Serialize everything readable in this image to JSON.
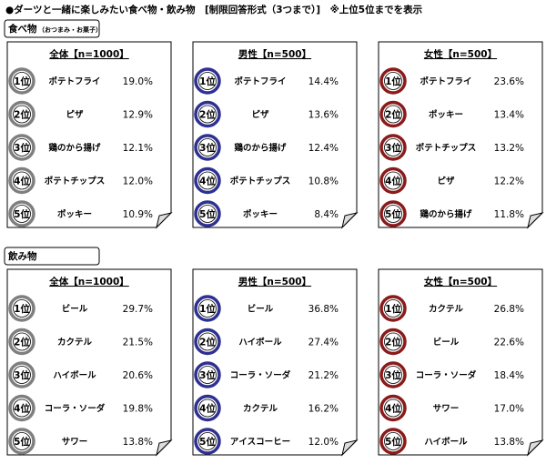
{
  "title": "●ダーツと一緒に楽しみたい食べ物・飲み物　[制限回答形式（3つまで）]　※上位5位までを表示",
  "sections": [
    {
      "label": "食べ物",
      "sublabel": "（おつまみ・お菓子）",
      "panels": [
        {
          "header": "全体【n=1000】",
          "items": [
            {
              "rank": "1位",
              "name": "ポテトフライ",
              "value": "19.0%"
            },
            {
              "rank": "2位",
              "name": "ピザ",
              "value": "12.9%"
            },
            {
              "rank": "3位",
              "name": "鶏のから揚げ",
              "value": "12.1%"
            },
            {
              "rank": "4位",
              "name": "ポテトチップス",
              "value": "12.0%"
            },
            {
              "rank": "5位",
              "name": "ポッキー",
              "value": "10.9%"
            }
          ]
        },
        {
          "header": "男性【n=500】",
          "items": [
            {
              "rank": "1位",
              "name": "ポテトフライ",
              "value": "14.4%"
            },
            {
              "rank": "2位",
              "name": "ピザ",
              "value": "13.6%"
            },
            {
              "rank": "3位",
              "name": "鶏のから揚げ",
              "value": "12.4%"
            },
            {
              "rank": "4位",
              "name": "ポテトチップス",
              "value": "10.8%"
            },
            {
              "rank": "5位",
              "name": "ポッキー",
              "value": "8.4%"
            }
          ]
        },
        {
          "header": "女性【n=500】",
          "items": [
            {
              "rank": "1位",
              "name": "ポテトフライ",
              "value": "23.6%"
            },
            {
              "rank": "2位",
              "name": "ポッキー",
              "value": "13.4%"
            },
            {
              "rank": "3位",
              "name": "ポテトチップス",
              "value": "13.2%"
            },
            {
              "rank": "4位",
              "name": "ピザ",
              "value": "12.2%"
            },
            {
              "rank": "5位",
              "name": "鶏のから揚げ",
              "value": "11.8%"
            }
          ]
        }
      ]
    },
    {
      "label": "飲み物",
      "panels": [
        {
          "header": "全体【n=1000】",
          "items": [
            {
              "rank": "1位",
              "name": "ビール",
              "value": "29.7%"
            },
            {
              "rank": "2位",
              "name": "カクテル",
              "value": "21.5%"
            },
            {
              "rank": "3位",
              "name": "ハイボール",
              "value": "20.6%"
            },
            {
              "rank": "4位",
              "name": "コーラ・ソーダ",
              "value": "19.8%"
            },
            {
              "rank": "5位",
              "name": "サワー",
              "value": "13.8%"
            }
          ]
        },
        {
          "header": "男性【n=500】",
          "items": [
            {
              "rank": "1位",
              "name": "ビール",
              "value": "36.8%"
            },
            {
              "rank": "2位",
              "name": "ハイボール",
              "value": "27.4%"
            },
            {
              "rank": "3位",
              "name": "コーラ・ソーダ",
              "value": "21.2%"
            },
            {
              "rank": "4位",
              "name": "カクテル",
              "value": "16.2%"
            },
            {
              "rank": "5位",
              "name": "アイスコーヒー",
              "value": "12.0%"
            }
          ]
        },
        {
          "header": "女性【n=500】",
          "items": [
            {
              "rank": "1位",
              "name": "カクテル",
              "value": "26.8%"
            },
            {
              "rank": "2位",
              "name": "ビール",
              "value": "22.6%"
            },
            {
              "rank": "3位",
              "name": "コーラ・ソーダ",
              "value": "18.4%"
            },
            {
              "rank": "4位",
              "name": "サワー",
              "value": "17.0%"
            },
            {
              "rank": "5位",
              "name": "ハイボール",
              "value": "13.8%"
            }
          ]
        }
      ]
    }
  ]
}
